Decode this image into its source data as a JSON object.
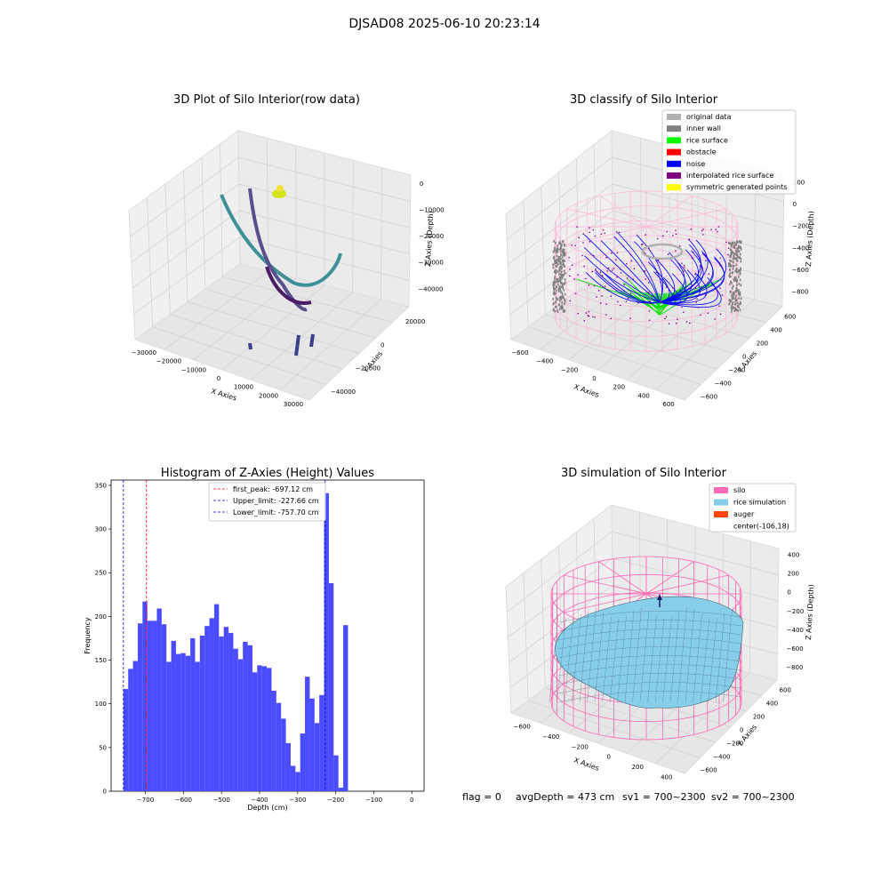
{
  "suptitle": "DJSAD08 2025-06-10 20:23:14",
  "status_line": {
    "flag": "flag = 0",
    "avg_depth": "avgDepth = 473 cm",
    "sv1": "sv1 = 700~2300",
    "sv2": "sv2 = 700~2300"
  },
  "colors": {
    "histogram_bar": "#4b4bff",
    "first_peak_line": "#ff0000",
    "limit_line": "#0000cc",
    "silo_wire": "#ff69b4",
    "rice_surface": "#87ceeb",
    "grid_pane": "#f2f2f2"
  },
  "chart_data": [
    {
      "type": "scatter3d",
      "title": "3D Plot of Silo Interior(row data)",
      "xlabel": "X Axies",
      "ylabel": "Y Axies",
      "zlabel": "Z Axies (Depth)",
      "x_ticks": [
        "−30000",
        "−20000",
        "−10000",
        "0",
        "10000",
        "20000",
        "30000"
      ],
      "y_ticks": [
        "20000",
        "0",
        "−20000",
        "−40000"
      ],
      "z_ticks": [
        "0",
        "−10000",
        "−20000",
        "−30000",
        "−40000"
      ]
    },
    {
      "type": "scatter3d",
      "title": "3D classify of Silo Interior",
      "xlabel": "X Axies",
      "ylabel": "Y Axies",
      "zlabel": "Z Axies (Depth)",
      "x_ticks": [
        "−600",
        "−400",
        "−200",
        "0",
        "200",
        "400",
        "600"
      ],
      "y_ticks": [
        "600",
        "400",
        "200",
        "0",
        "−200",
        "−400",
        "−600"
      ],
      "z_ticks": [
        "200",
        "0",
        "−200",
        "−400",
        "−600",
        "−800"
      ],
      "legend_position": "top-right",
      "legend": [
        {
          "label": "original data",
          "color": "#b0b0b0"
        },
        {
          "label": "inner wall",
          "color": "#808080"
        },
        {
          "label": "rice surface",
          "color": "#00ff00"
        },
        {
          "label": "obstacle",
          "color": "#ff0000"
        },
        {
          "label": "noise",
          "color": "#0000ff"
        },
        {
          "label": "interpolated rice surface",
          "color": "#800080"
        },
        {
          "label": "symmetric generated points",
          "color": "#ffff00"
        }
      ]
    },
    {
      "type": "bar",
      "title": "Histogram of Z-Axies (Height) Values",
      "xlabel": "Depth (cm)",
      "ylabel": "Frequency",
      "xlim": [
        -790,
        32
      ],
      "ylim": [
        0,
        356
      ],
      "x_ticks": [
        {
          "value": -700,
          "label": "−700"
        },
        {
          "value": -600,
          "label": "−600"
        },
        {
          "value": -500,
          "label": "−500"
        },
        {
          "value": -400,
          "label": "−400"
        },
        {
          "value": -300,
          "label": "−300"
        },
        {
          "value": -200,
          "label": "−200"
        },
        {
          "value": -100,
          "label": "−100"
        },
        {
          "value": 0,
          "label": "0"
        }
      ],
      "y_ticks": [
        0,
        50,
        100,
        150,
        200,
        250,
        300,
        350
      ],
      "bin_start": -757.7,
      "bin_width": 12.55,
      "values": [
        117,
        140,
        149,
        192,
        217,
        195,
        195,
        209,
        191,
        148,
        172,
        157,
        158,
        155,
        175,
        148,
        178,
        189,
        198,
        214,
        177,
        188,
        181,
        163,
        151,
        171,
        167,
        136,
        144,
        143,
        141,
        115,
        101,
        83,
        55,
        29,
        22,
        66,
        131,
        106,
        78,
        110,
        341,
        238,
        41,
        4,
        190
      ],
      "lines": [
        {
          "label": "first_peak: -697.12 cm",
          "value": -697.12,
          "color": "#ff0000"
        },
        {
          "label": "Upper_limit: -227.66 cm",
          "value": -227.66,
          "color": "#0000cc"
        },
        {
          "label": "Lower_limit: -757.70 cm",
          "value": -757.7,
          "color": "#0000cc"
        }
      ],
      "legend_position": "top-center"
    },
    {
      "type": "surface3d",
      "title": "3D simulation of Silo Interior",
      "xlabel": "X Axies",
      "ylabel": "Y Axies",
      "zlabel": "Z Axies (Depth)",
      "x_ticks": [
        "−600",
        "−400",
        "−200",
        "0",
        "200",
        "400"
      ],
      "y_ticks": [
        "600",
        "400",
        "200",
        "0",
        "−200",
        "−400",
        "−600"
      ],
      "z_ticks": [
        "400",
        "200",
        "0",
        "−200",
        "−400",
        "−600",
        "−800"
      ],
      "legend_position": "top-right",
      "legend": [
        {
          "label": "silo",
          "color": "#ff69b4"
        },
        {
          "label": "rice simulation",
          "color": "#87ceeb"
        },
        {
          "label": "auger",
          "color": "#ff4500"
        },
        {
          "label": "center(-106,18)",
          "color": ""
        }
      ]
    }
  ]
}
